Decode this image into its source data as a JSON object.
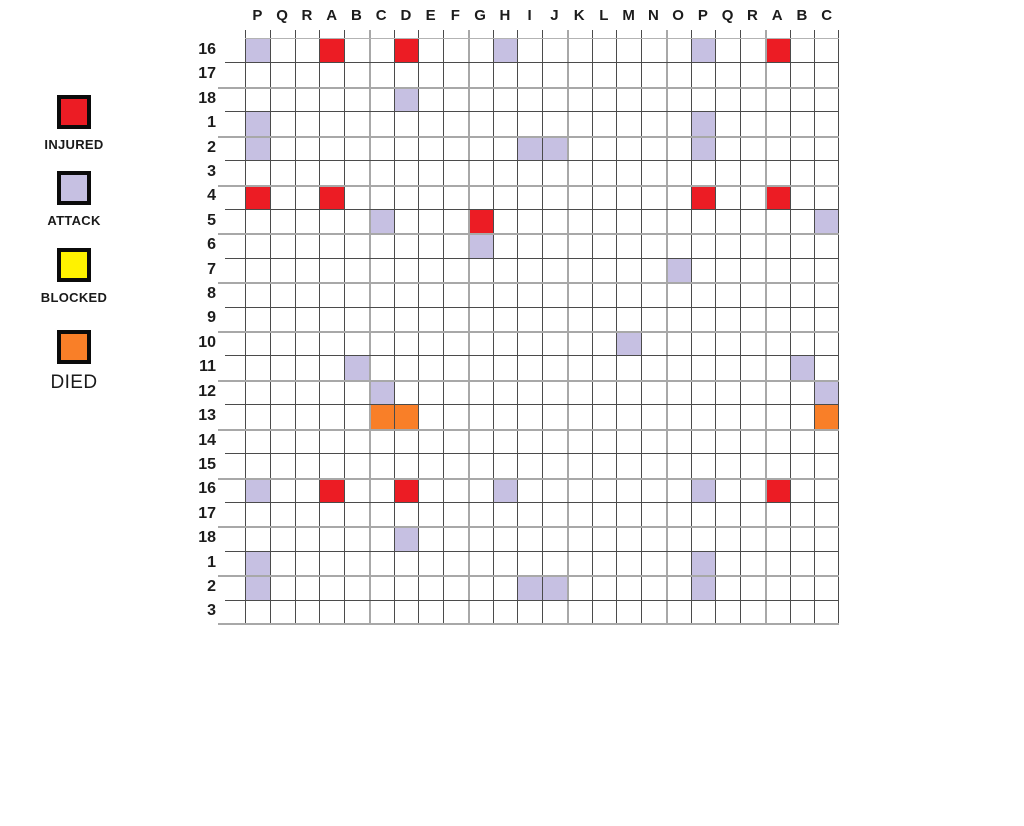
{
  "legend": {
    "items": [
      {
        "label": "INJURED",
        "state": "injured"
      },
      {
        "label": "ATTACK",
        "state": "attack"
      },
      {
        "label": "BLOCKED",
        "state": "blocked"
      },
      {
        "label": "DIED",
        "state": "died"
      }
    ]
  },
  "colors": {
    "injured": "#ec1c24",
    "attack": "#c6c0e2",
    "blocked": "#fff200",
    "died": "#f97f28",
    "grid_line_dark": "#4b4b4b",
    "grid_line_gray": "#a8a8a8"
  },
  "chart_data": {
    "type": "heatmap",
    "title": "",
    "legend_position": "left",
    "grid": true,
    "x_labels": [
      "P",
      "Q",
      "R",
      "A",
      "B",
      "C",
      "D",
      "E",
      "F",
      "G",
      "H",
      "I",
      "J",
      "K",
      "L",
      "M",
      "N",
      "O",
      "P",
      "Q",
      "R",
      "A",
      "B",
      "C"
    ],
    "y_labels": [
      "16",
      "17",
      "18",
      "1",
      "2",
      "3",
      "4",
      "5",
      "6",
      "7",
      "8",
      "9",
      "10",
      "11",
      "12",
      "13",
      "14",
      "15",
      "16",
      "17",
      "18",
      "1",
      "2",
      "3"
    ],
    "cells": [
      {
        "row": 0,
        "col": 0,
        "state": "attack"
      },
      {
        "row": 0,
        "col": 3,
        "state": "injured"
      },
      {
        "row": 0,
        "col": 6,
        "state": "injured"
      },
      {
        "row": 0,
        "col": 10,
        "state": "attack"
      },
      {
        "row": 0,
        "col": 18,
        "state": "attack"
      },
      {
        "row": 0,
        "col": 21,
        "state": "injured"
      },
      {
        "row": 2,
        "col": 6,
        "state": "attack"
      },
      {
        "row": 3,
        "col": 0,
        "state": "attack"
      },
      {
        "row": 3,
        "col": 18,
        "state": "attack"
      },
      {
        "row": 4,
        "col": 0,
        "state": "attack"
      },
      {
        "row": 4,
        "col": 11,
        "state": "attack"
      },
      {
        "row": 4,
        "col": 12,
        "state": "attack"
      },
      {
        "row": 4,
        "col": 18,
        "state": "attack"
      },
      {
        "row": 6,
        "col": 0,
        "state": "injured"
      },
      {
        "row": 6,
        "col": 3,
        "state": "injured"
      },
      {
        "row": 6,
        "col": 18,
        "state": "injured"
      },
      {
        "row": 6,
        "col": 21,
        "state": "injured"
      },
      {
        "row": 7,
        "col": 5,
        "state": "attack"
      },
      {
        "row": 7,
        "col": 9,
        "state": "injured"
      },
      {
        "row": 7,
        "col": 23,
        "state": "attack"
      },
      {
        "row": 8,
        "col": 9,
        "state": "attack"
      },
      {
        "row": 9,
        "col": 17,
        "state": "attack"
      },
      {
        "row": 12,
        "col": 15,
        "state": "attack"
      },
      {
        "row": 13,
        "col": 4,
        "state": "attack"
      },
      {
        "row": 13,
        "col": 22,
        "state": "attack"
      },
      {
        "row": 14,
        "col": 5,
        "state": "attack"
      },
      {
        "row": 14,
        "col": 23,
        "state": "attack"
      },
      {
        "row": 15,
        "col": 5,
        "state": "died"
      },
      {
        "row": 15,
        "col": 6,
        "state": "died"
      },
      {
        "row": 15,
        "col": 23,
        "state": "died"
      },
      {
        "row": 18,
        "col": 0,
        "state": "attack"
      },
      {
        "row": 18,
        "col": 3,
        "state": "injured"
      },
      {
        "row": 18,
        "col": 6,
        "state": "injured"
      },
      {
        "row": 18,
        "col": 10,
        "state": "attack"
      },
      {
        "row": 18,
        "col": 18,
        "state": "attack"
      },
      {
        "row": 18,
        "col": 21,
        "state": "injured"
      },
      {
        "row": 20,
        "col": 6,
        "state": "attack"
      },
      {
        "row": 21,
        "col": 0,
        "state": "attack"
      },
      {
        "row": 21,
        "col": 18,
        "state": "attack"
      },
      {
        "row": 22,
        "col": 0,
        "state": "attack"
      },
      {
        "row": 22,
        "col": 11,
        "state": "attack"
      },
      {
        "row": 22,
        "col": 12,
        "state": "attack"
      },
      {
        "row": 22,
        "col": 18,
        "state": "attack"
      }
    ]
  }
}
